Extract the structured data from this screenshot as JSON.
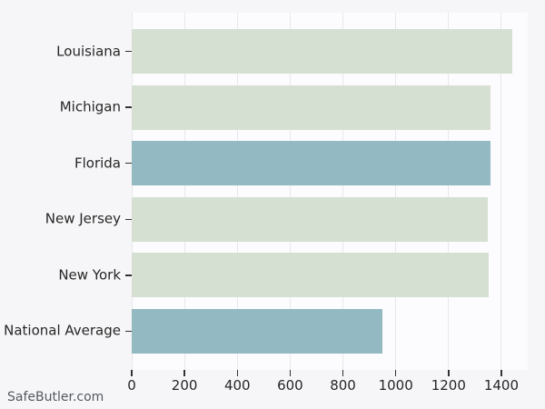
{
  "watermark": "SafeButler.com",
  "colors": {
    "figure_background": "#f6f6f8",
    "plot_background": "#fcfcfe",
    "gridline": "#e8e8ec",
    "bar_default": "#d5e0d2",
    "bar_highlight": "#93b9c2",
    "axis_text": "#262626",
    "tick_mark": "#333333",
    "watermark_text": "#55595e"
  },
  "chart_data": {
    "type": "bar",
    "orientation": "horizontal",
    "title": "",
    "xlabel": "",
    "ylabel": "",
    "categories": [
      "Louisiana",
      "Michigan",
      "Florida",
      "New Jersey",
      "New York",
      "National Average"
    ],
    "values": [
      1440,
      1358,
      1358,
      1348,
      1351,
      949
    ],
    "bar_colors": [
      "#d5e0d2",
      "#d5e0d2",
      "#93b9c2",
      "#d5e0d2",
      "#d5e0d2",
      "#93b9c2"
    ],
    "highlighted_categories": [
      "Florida",
      "National Average"
    ],
    "xticks": [
      0,
      200,
      400,
      600,
      800,
      1000,
      1200,
      1400
    ],
    "xtick_labels": [
      "0",
      "200",
      "400",
      "600",
      "800",
      "1000",
      "1200",
      "1400"
    ],
    "xlim": [
      0,
      1500
    ],
    "grid": "vertical-gridlines",
    "legend": "none"
  }
}
